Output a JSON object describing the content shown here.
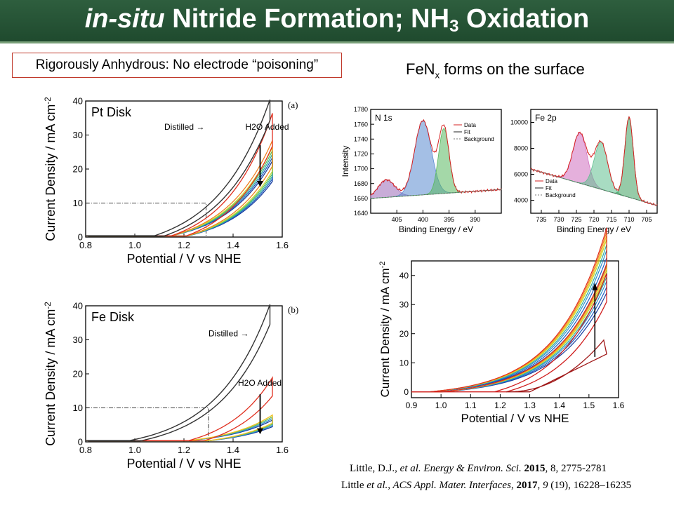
{
  "slide": {
    "title_italic": "in-situ",
    "title_main": "Nitride Formation; NH",
    "title_sub": "3",
    "title_end": "Oxidation",
    "boxed_note": "Rigorously Anhydrous: No electrode “poisoning”",
    "fen_text": "FeN",
    "fen_sub": "x",
    "fen_rest": "forms on the surface",
    "refs": [
      {
        "authors": "Little,  D.J., ",
        "etal": "et al.",
        "journal": "Energy & Environ. Sci.",
        "year": "2015",
        "rest": ", 8, 2775-2781"
      },
      {
        "authors": "Little ",
        "etal": "et al.",
        "journal": ", ACS Appl. Mater. Interfaces",
        "year": "2017",
        "vol": "9",
        "rest": " (19), 16228–16235"
      }
    ]
  },
  "colors": {
    "title_bar": "#1f4a2e",
    "note_border": "#c0392b",
    "distilled": "#333333",
    "h2o_first": "#e02020",
    "xps_data": "#d62020",
    "xps_n_peak1": "#4a7ac8",
    "xps_n_peak2": "#4caf50"
  },
  "chart_data": [
    {
      "type": "line",
      "panel": "(a)",
      "label": "Pt Disk",
      "xlabel": "Potential / V vs NHE",
      "ylabel": "Current Density / mA cm",
      "ylabel_sup": "-2",
      "xlim": [
        0.8,
        1.6
      ],
      "ylim": [
        0,
        40
      ],
      "xticks": [
        "0.8",
        "1.0",
        "1.2",
        "1.4",
        "1.6"
      ],
      "yticks": [
        "0",
        "10",
        "20",
        "30",
        "40"
      ],
      "annotations": [
        "Distilled",
        "H2O Added"
      ],
      "reference": {
        "x": 1.29,
        "y": 10
      },
      "series": [
        {
          "role": "distilled",
          "onset": 1.08,
          "peak": [
            1.55,
            40
          ]
        },
        {
          "role": "h2o",
          "peak": [
            1.56,
            36
          ]
        },
        {
          "role": "h2o",
          "peak": [
            1.56,
            28
          ]
        },
        {
          "role": "h2o",
          "peak": [
            1.56,
            26
          ]
        },
        {
          "role": "h2o",
          "peak": [
            1.56,
            25
          ]
        },
        {
          "role": "h2o",
          "peak": [
            1.56,
            24
          ]
        },
        {
          "role": "h2o",
          "peak": [
            1.56,
            23
          ]
        },
        {
          "role": "h2o",
          "peak": [
            1.56,
            22
          ]
        }
      ]
    },
    {
      "type": "line",
      "panel": "(b)",
      "label": "Fe Disk",
      "xlabel": "Potential / V vs NHE",
      "ylabel": "Current Density / mA cm",
      "ylabel_sup": "-2",
      "xlim": [
        0.8,
        1.6
      ],
      "ylim": [
        0,
        40
      ],
      "xticks": [
        "0.8",
        "1.0",
        "1.2",
        "1.4",
        "1.6"
      ],
      "yticks": [
        "0",
        "10",
        "20",
        "30",
        "40"
      ],
      "annotations": [
        "Distilled",
        "H2O Added"
      ],
      "reference": {
        "x": 1.3,
        "y": 10
      },
      "series": [
        {
          "role": "distilled",
          "onset": 0.98,
          "peak": [
            1.55,
            40
          ]
        },
        {
          "role": "h2o",
          "peak": [
            1.56,
            18.5
          ]
        },
        {
          "role": "h2o",
          "peak": [
            1.56,
            7.5
          ]
        },
        {
          "role": "h2o",
          "peak": [
            1.56,
            7
          ]
        },
        {
          "role": "h2o",
          "peak": [
            1.56,
            6.5
          ]
        },
        {
          "role": "h2o",
          "peak": [
            1.56,
            6
          ]
        }
      ]
    },
    {
      "type": "line",
      "panel": "N 1s",
      "xlabel": "Binding Energy / eV",
      "ylabel": "Intensity",
      "xlim": [
        410,
        385
      ],
      "ylim": [
        1640,
        1780
      ],
      "xticks": [
        "405",
        "400",
        "395",
        "390"
      ],
      "yticks": [
        "1640",
        "1660",
        "1680",
        "1700",
        "1720",
        "1740",
        "1760",
        "1780"
      ],
      "legend": [
        "Data",
        "Fit",
        "Background"
      ],
      "peaks": [
        {
          "center": 407,
          "height": 1685
        },
        {
          "center": 400,
          "height": 1765
        },
        {
          "center": 396,
          "height": 1755
        }
      ]
    },
    {
      "type": "line",
      "panel": "Fe 2p",
      "xlabel": "Binding Energy / eV",
      "xlim": [
        738,
        702
      ],
      "ylim": [
        3000,
        11000
      ],
      "xticks": [
        "735",
        "730",
        "725",
        "720",
        "715",
        "710",
        "705"
      ],
      "yticks": [
        "4000",
        "6000",
        "8000",
        "10000"
      ],
      "legend": [
        "Data",
        "Fit",
        "Background"
      ],
      "peaks": [
        {
          "center": 724,
          "height": 9200
        },
        {
          "center": 718,
          "height": 8500
        },
        {
          "center": 710,
          "height": 10400
        }
      ]
    },
    {
      "type": "line",
      "panel": "cyclic",
      "xlabel": "Potential / V vs NHE",
      "ylabel": "Current Density / mA cm",
      "ylabel_sup": "-2",
      "xlim": [
        0.9,
        1.6
      ],
      "ylim": [
        -2,
        45
      ],
      "xticks": [
        "0.9",
        "1.0",
        "1.1",
        "1.2",
        "1.3",
        "1.4",
        "1.5",
        "1.6"
      ],
      "yticks": [
        "0",
        "10",
        "20",
        "30",
        "40"
      ],
      "series": [
        {
          "role": "first_scan",
          "peak": [
            1.56,
            19
          ]
        },
        {
          "role": "second_scan",
          "peak": [
            1.56,
            31
          ]
        },
        {
          "role": "cycle",
          "peak": [
            1.56,
            34
          ]
        },
        {
          "role": "cycle",
          "peak": [
            1.56,
            36
          ]
        },
        {
          "role": "cycle",
          "peak": [
            1.56,
            38
          ]
        },
        {
          "role": "cycle",
          "peak": [
            1.56,
            39.5
          ]
        },
        {
          "role": "cycle",
          "peak": [
            1.56,
            41
          ]
        },
        {
          "role": "cycle",
          "peak": [
            1.56,
            42
          ]
        },
        {
          "role": "cycle",
          "peak": [
            1.56,
            43
          ]
        },
        {
          "role": "cycle",
          "peak": [
            1.56,
            44
          ]
        }
      ]
    }
  ]
}
